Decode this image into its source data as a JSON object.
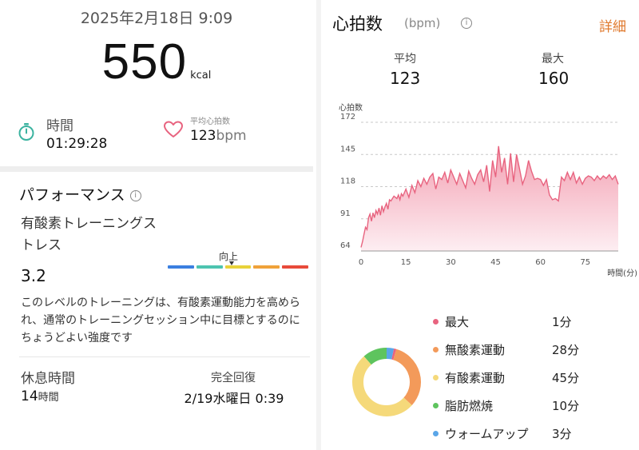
{
  "summary": {
    "datetime": "2025年2月18日 9:09",
    "calories": "550",
    "calories_unit": "kcal",
    "duration_label": "時間",
    "duration_value": "01:29:28",
    "avg_hr_label": "平均心拍数",
    "avg_hr_value": "123",
    "avg_hr_unit": "bpm"
  },
  "performance": {
    "title": "パフォーマンス",
    "info_glyph": "i",
    "stress_label": "有酸素トレーニングストレス",
    "stress_value": "3.2",
    "scale_marker_label": "向上",
    "scale_colors": [
      "#3b7fe0",
      "#4dc4b0",
      "#e8d23a",
      "#f0a23a",
      "#e84a3a"
    ],
    "description": "このレベルのトレーニングは、有酸素運動能力を高められ、通常のトレーニングセッション中に目標とするのにちょうどよい強度です",
    "rest_label": "休息時間",
    "rest_value": "14",
    "rest_unit": "時間",
    "recovery_label": "完全回復",
    "recovery_value": "2/19水曜日 0:39"
  },
  "heart_rate": {
    "title": "心拍数",
    "unit": "(bpm)",
    "info_glyph": "i",
    "detail_link": "詳細",
    "avg_label": "平均",
    "avg_value": "123",
    "max_label": "最大",
    "max_value": "160"
  },
  "chart_data": {
    "type": "area",
    "ylabel": "心拍数",
    "xlabel": "時間(分)",
    "ylim": [
      64,
      172
    ],
    "yticks": [
      64,
      91,
      118,
      145,
      172
    ],
    "xlim": [
      0,
      86
    ],
    "xticks": [
      0,
      15,
      30,
      45,
      60,
      75
    ],
    "line_color": "#e8637f",
    "fill_top_color": "#f3a0b2",
    "fill_bottom_color": "#fdeef2",
    "x": [
      0,
      0.5,
      1,
      1.5,
      2,
      2.5,
      3,
      3.5,
      4,
      4.5,
      5,
      5.5,
      6,
      6.5,
      7,
      7.5,
      8,
      8.5,
      9,
      9.5,
      10,
      10.5,
      11,
      11.5,
      12,
      12.5,
      13,
      13.5,
      14,
      14.5,
      15,
      16,
      17,
      18,
      19,
      20,
      21,
      22,
      23,
      24,
      25,
      26,
      27,
      28,
      29,
      30,
      31,
      32,
      33,
      34,
      35,
      36,
      37,
      38,
      39,
      40,
      41,
      42,
      43,
      44,
      45,
      46,
      47,
      48,
      49,
      50,
      51,
      52,
      53,
      54,
      55,
      56,
      57,
      58,
      59,
      60,
      61,
      62,
      63,
      64,
      65,
      66,
      67,
      68,
      69,
      70,
      71,
      72,
      73,
      74,
      75,
      76,
      77,
      78,
      79,
      80,
      81,
      82,
      83,
      84,
      85,
      86
    ],
    "values": [
      67,
      72,
      78,
      84,
      82,
      92,
      95,
      89,
      96,
      92,
      98,
      95,
      100,
      94,
      102,
      97,
      101,
      104,
      99,
      107,
      106,
      108,
      110,
      109,
      108,
      111,
      107,
      112,
      110,
      113,
      116,
      109,
      119,
      113,
      123,
      118,
      125,
      120,
      126,
      129,
      116,
      126,
      124,
      130,
      121,
      132,
      126,
      120,
      129,
      123,
      117,
      131,
      125,
      120,
      128,
      132,
      122,
      136,
      114,
      140,
      126,
      152,
      130,
      142,
      120,
      146,
      122,
      145,
      133,
      120,
      127,
      140,
      131,
      124,
      125,
      124,
      119,
      124,
      111,
      107,
      108,
      106,
      126,
      123,
      130,
      124,
      130,
      121,
      126,
      120,
      125,
      127,
      126,
      123,
      127,
      124,
      127,
      125,
      128,
      124,
      127,
      120
    ]
  },
  "zones": [
    {
      "name": "最大",
      "minutes": "1分",
      "value": 1,
      "color": "#e8637f"
    },
    {
      "name": "無酸素運動",
      "minutes": "28分",
      "value": 28,
      "color": "#f39a5a"
    },
    {
      "name": "有酸素運動",
      "minutes": "45分",
      "value": 45,
      "color": "#f5d97a"
    },
    {
      "name": "脂肪燃焼",
      "minutes": "10分",
      "value": 10,
      "color": "#5ec45e"
    },
    {
      "name": "ウォームアップ",
      "minutes": "3分",
      "value": 3,
      "color": "#5aa6e8"
    }
  ]
}
